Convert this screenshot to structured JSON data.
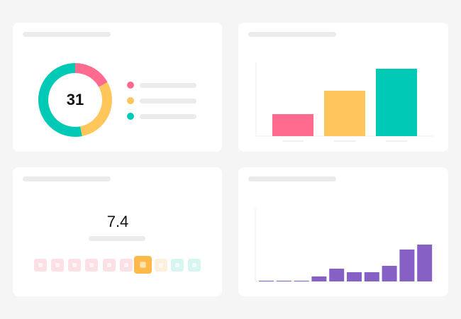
{
  "donut": {
    "type": "donut",
    "center_label": "31",
    "series": [
      {
        "color": "#ff6b8f",
        "value": 17
      },
      {
        "color": "#ffc65c",
        "value": 30
      },
      {
        "color": "#00c9b5",
        "value": 53
      }
    ]
  },
  "bars": {
    "type": "bar",
    "colors": [
      "#ff6b8f",
      "#ffc65c",
      "#00c9b5"
    ],
    "values": [
      31,
      64,
      95
    ],
    "ylim": [
      0,
      100
    ]
  },
  "rating": {
    "score": "7.4"
  },
  "histogram": {
    "type": "bar",
    "color": "#8760c6",
    "values": [
      1,
      1,
      1,
      7,
      18,
      13,
      13,
      22,
      45,
      52
    ],
    "ylim": [
      0,
      100
    ]
  }
}
